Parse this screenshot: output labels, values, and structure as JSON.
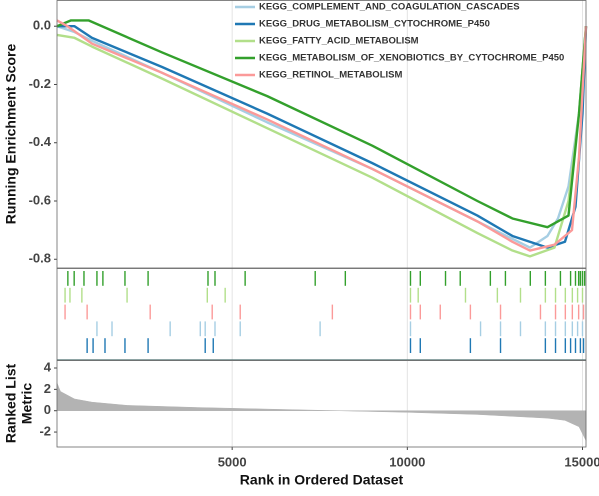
{
  "chart_data": [
    {
      "type": "line",
      "ylabel": "Running Enrichment Score",
      "xlim": [
        0,
        15100
      ],
      "ylim": [
        -0.83,
        0.09
      ],
      "xticks": [
        5000,
        10000,
        15000
      ],
      "yticks": [
        {
          "value": 0,
          "label": "0.0"
        },
        -0.2,
        -0.4,
        -0.6,
        -0.8
      ],
      "grid": true,
      "legend": "top",
      "series": [
        {
          "name": "KEGG_COMPLEMENT_AND_COAGULATION_CASCADES",
          "color": "#a6cee3",
          "x": [
            0,
            500,
            1000,
            3000,
            6000,
            9000,
            12000,
            13000,
            13500,
            14000,
            14300,
            14600,
            14900,
            15100
          ],
          "values": [
            0,
            -0.02,
            -0.05,
            -0.16,
            -0.33,
            -0.49,
            -0.67,
            -0.73,
            -0.76,
            -0.72,
            -0.66,
            -0.55,
            -0.3,
            0
          ]
        },
        {
          "name": "KEGG_DRUG_METABOLISM_CYTOCHROME_P450",
          "color": "#1f78b4",
          "x": [
            0,
            500,
            1000,
            3000,
            6000,
            9000,
            12000,
            13000,
            14000,
            14500,
            14800,
            15000,
            15100
          ],
          "values": [
            0,
            0,
            -0.04,
            -0.14,
            -0.3,
            -0.47,
            -0.65,
            -0.72,
            -0.76,
            -0.74,
            -0.62,
            -0.3,
            0
          ]
        },
        {
          "name": "KEGG_FATTY_ACID_METABOLISM",
          "color": "#b2df8a",
          "x": [
            0,
            500,
            1000,
            3000,
            6000,
            9000,
            12000,
            13000,
            13500,
            14200,
            14600,
            14900,
            15100
          ],
          "values": [
            -0.03,
            -0.04,
            -0.07,
            -0.18,
            -0.35,
            -0.52,
            -0.71,
            -0.77,
            -0.79,
            -0.76,
            -0.6,
            -0.3,
            0
          ]
        },
        {
          "name": "KEGG_METABOLISM_OF_XENOBIOTICS_BY_CYTOCHROME_P450",
          "color": "#33a02c",
          "x": [
            0,
            400,
            900,
            3000,
            6000,
            9000,
            12000,
            13000,
            14000,
            14600,
            14900,
            15100
          ],
          "values": [
            0,
            0.02,
            0.02,
            -0.09,
            -0.24,
            -0.41,
            -0.6,
            -0.66,
            -0.69,
            -0.65,
            -0.3,
            0
          ]
        },
        {
          "name": "KEGG_RETINOL_METABOLISM",
          "color": "#fb9a99",
          "x": [
            0,
            300,
            1000,
            3000,
            6000,
            9000,
            12000,
            13000,
            13500,
            14200,
            14700,
            14900,
            15100
          ],
          "values": [
            0.02,
            0,
            -0.06,
            -0.16,
            -0.32,
            -0.49,
            -0.67,
            -0.74,
            -0.77,
            -0.75,
            -0.7,
            -0.45,
            0
          ]
        }
      ]
    },
    {
      "type": "rug",
      "xlim": [
        0,
        15100
      ],
      "xticks": [
        5000,
        10000,
        15000
      ],
      "grid": true,
      "rows": [
        {
          "color": "#33a02c",
          "x": [
            310,
            490,
            770,
            1140,
            1310,
            1940,
            2600,
            4310,
            4510,
            5370,
            7370,
            8230,
            10090,
            10370,
            11090,
            11510,
            12370,
            12800,
            13510,
            13940,
            14370,
            14660,
            14800,
            14890,
            14940,
            15000,
            15060
          ]
        },
        {
          "color": "#b2df8a",
          "x": [
            230,
            370,
            710,
            2000,
            4290,
            4800,
            10090,
            10310,
            11660,
            12570,
            13230,
            13940,
            14230,
            14510,
            14710,
            14860,
            15000
          ]
        },
        {
          "color": "#fb9a99",
          "x": [
            230,
            860,
            2660,
            4430,
            5230,
            7860,
            10090,
            10370,
            10940,
            11800,
            12660,
            13800,
            14230,
            14510,
            14710,
            14890,
            15030
          ]
        },
        {
          "color": "#a6cee3",
          "x": [
            1140,
            1570,
            3230,
            4090,
            4230,
            4510,
            5230,
            7510,
            10090,
            12090,
            12660,
            13230,
            13940,
            14230,
            14510,
            14710,
            14860,
            15000
          ]
        },
        {
          "color": "#1f78b4",
          "x": [
            860,
            1030,
            1370,
            1940,
            2600,
            4230,
            4460,
            10090,
            10370,
            11800,
            12660,
            13940,
            14230,
            14510,
            14660,
            14800,
            14940,
            15030
          ]
        }
      ]
    },
    {
      "type": "area",
      "ylabel": [
        "Ranked List",
        "Metric"
      ],
      "xlabel": "Rank in Ordered Dataset",
      "xlim": [
        0,
        15100
      ],
      "ylim": [
        -3.4,
        4.75
      ],
      "xticks": [
        5000,
        10000,
        15000
      ],
      "yticks": [
        4,
        2,
        0,
        -2
      ],
      "grid": true,
      "color": "#b3b3b3",
      "x": [
        0,
        100,
        500,
        1000,
        2000,
        4000,
        6000,
        8000,
        10000,
        12000,
        14000,
        14500,
        14900,
        15100
      ],
      "values": [
        2.6,
        1.8,
        1.1,
        0.8,
        0.5,
        0.3,
        0.15,
        0,
        -0.15,
        -0.35,
        -0.7,
        -0.9,
        -1.5,
        -2.8
      ]
    }
  ]
}
